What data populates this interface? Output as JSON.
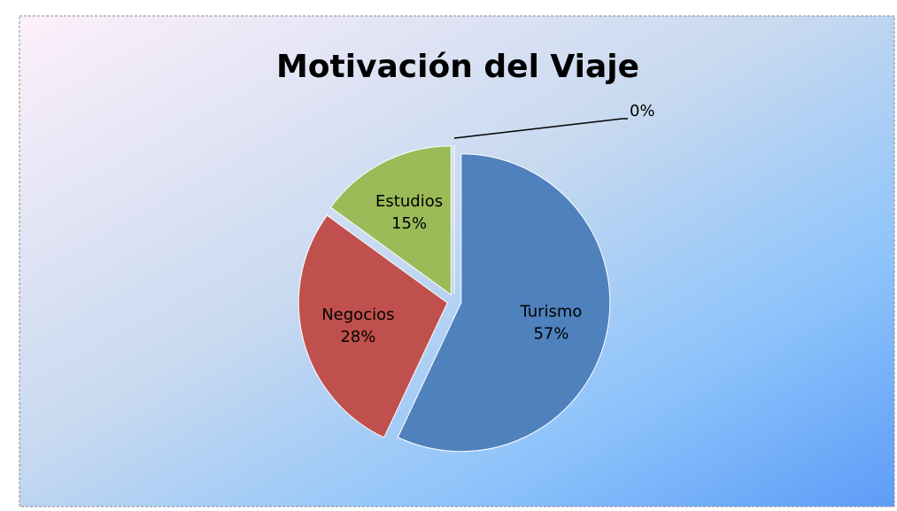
{
  "chart_data": {
    "type": "pie",
    "title": "Motivación del Viaje",
    "categories": [
      "Turismo",
      "Negocios",
      "Estudios",
      null
    ],
    "values": [
      57,
      28,
      15,
      0
    ],
    "value_labels": [
      "57%",
      "28%",
      "15%",
      "0%"
    ],
    "colors": [
      "#4f81bd",
      "#c0504d",
      "#9bbb59",
      "#8064a2"
    ]
  }
}
